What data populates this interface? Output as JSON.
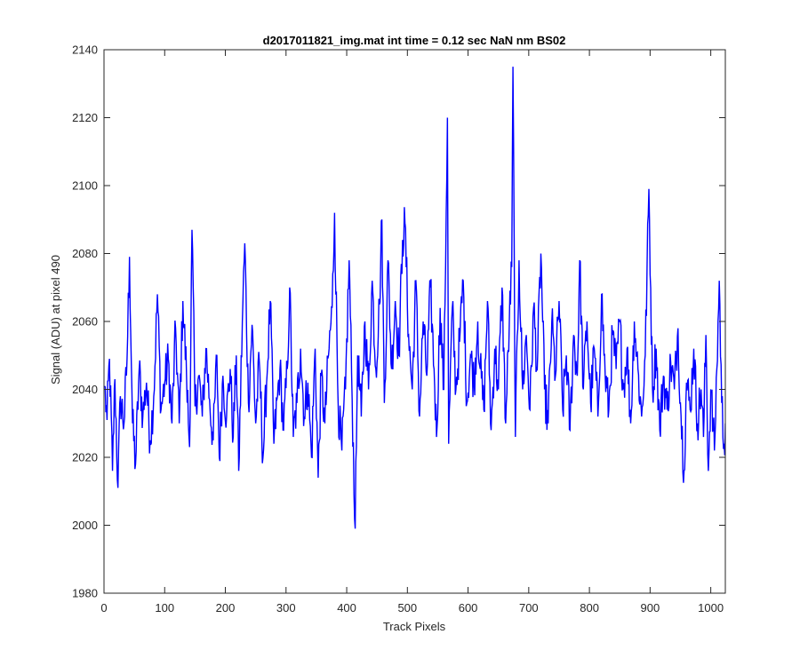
{
  "chart_data": {
    "type": "line",
    "title": "d2017011821_img.mat int time = 0.12 sec  NaN nm BS02",
    "xlabel": "Track Pixels",
    "ylabel": "Signal (ADU) at pixel 490",
    "xlim": [
      0,
      1024
    ],
    "ylim": [
      1980,
      2140
    ],
    "x_ticks": [
      0,
      100,
      200,
      300,
      400,
      500,
      600,
      700,
      800,
      900,
      1000
    ],
    "y_ticks": [
      1980,
      2000,
      2020,
      2040,
      2060,
      2080,
      2100,
      2120,
      2140
    ],
    "grid": false,
    "legend": "none",
    "series": [
      {
        "color": "#0000ff",
        "x_start": 1,
        "x_step": 1,
        "values_description_note_removed": null,
        "knots": [
          [
            1,
            2041
          ],
          [
            5,
            2031
          ],
          [
            9,
            2049
          ],
          [
            14,
            2016
          ],
          [
            18,
            2043
          ],
          [
            23,
            2011
          ],
          [
            27,
            2038
          ],
          [
            33,
            2030
          ],
          [
            38,
            2049
          ],
          [
            42,
            2079
          ],
          [
            47,
            2030
          ],
          [
            52,
            2018
          ],
          [
            58,
            2046
          ],
          [
            64,
            2032
          ],
          [
            70,
            2042
          ],
          [
            76,
            2025
          ],
          [
            82,
            2038
          ],
          [
            88,
            2068
          ],
          [
            94,
            2034
          ],
          [
            100,
            2042
          ],
          [
            106,
            2049
          ],
          [
            112,
            2030
          ],
          [
            118,
            2058
          ],
          [
            124,
            2030
          ],
          [
            130,
            2066
          ],
          [
            136,
            2044
          ],
          [
            141,
            2023
          ],
          [
            145,
            2087
          ],
          [
            150,
            2035
          ],
          [
            156,
            2044
          ],
          [
            162,
            2032
          ],
          [
            168,
            2052
          ],
          [
            174,
            2037
          ],
          [
            180,
            2025
          ],
          [
            186,
            2050
          ],
          [
            190,
            2020
          ],
          [
            196,
            2044
          ],
          [
            202,
            2032
          ],
          [
            208,
            2046
          ],
          [
            213,
            2026
          ],
          [
            218,
            2050
          ],
          [
            222,
            2016
          ],
          [
            228,
            2060
          ],
          [
            232,
            2083
          ],
          [
            238,
            2036
          ],
          [
            244,
            2059
          ],
          [
            250,
            2030
          ],
          [
            256,
            2048
          ],
          [
            262,
            2020
          ],
          [
            268,
            2042
          ],
          [
            274,
            2066
          ],
          [
            280,
            2024
          ],
          [
            286,
            2038
          ],
          [
            290,
            2046
          ],
          [
            296,
            2028
          ],
          [
            302,
            2046
          ],
          [
            306,
            2070
          ],
          [
            312,
            2026
          ],
          [
            318,
            2036
          ],
          [
            324,
            2052
          ],
          [
            330,
            2032
          ],
          [
            336,
            2042
          ],
          [
            342,
            2020
          ],
          [
            348,
            2052
          ],
          [
            353,
            2014
          ],
          [
            358,
            2044
          ],
          [
            364,
            2030
          ],
          [
            370,
            2050
          ],
          [
            376,
            2064
          ],
          [
            380,
            2092
          ],
          [
            386,
            2035
          ],
          [
            392,
            2022
          ],
          [
            398,
            2040
          ],
          [
            404,
            2078
          ],
          [
            408,
            2045
          ],
          [
            414,
            1999
          ],
          [
            418,
            2050
          ],
          [
            424,
            2032
          ],
          [
            430,
            2060
          ],
          [
            436,
            2040
          ],
          [
            442,
            2072
          ],
          [
            448,
            2046
          ],
          [
            454,
            2065
          ],
          [
            458,
            2090
          ],
          [
            462,
            2036
          ],
          [
            468,
            2078
          ],
          [
            474,
            2046
          ],
          [
            480,
            2066
          ],
          [
            486,
            2050
          ],
          [
            492,
            2084
          ],
          [
            496,
            2089
          ],
          [
            502,
            2056
          ],
          [
            508,
            2040
          ],
          [
            514,
            2072
          ],
          [
            520,
            2032
          ],
          [
            526,
            2060
          ],
          [
            532,
            2044
          ],
          [
            538,
            2070
          ],
          [
            544,
            2046
          ],
          [
            548,
            2026
          ],
          [
            554,
            2064
          ],
          [
            560,
            2040
          ],
          [
            566,
            2120
          ],
          [
            568,
            2024
          ],
          [
            574,
            2064
          ],
          [
            580,
            2040
          ],
          [
            586,
            2054
          ],
          [
            592,
            2072
          ],
          [
            598,
            2036
          ],
          [
            604,
            2050
          ],
          [
            610,
            2042
          ],
          [
            616,
            2060
          ],
          [
            620,
            2046
          ],
          [
            626,
            2034
          ],
          [
            632,
            2066
          ],
          [
            638,
            2028
          ],
          [
            644,
            2052
          ],
          [
            650,
            2040
          ],
          [
            656,
            2070
          ],
          [
            662,
            2030
          ],
          [
            668,
            2060
          ],
          [
            672,
            2076
          ],
          [
            674,
            2135
          ],
          [
            678,
            2026
          ],
          [
            684,
            2078
          ],
          [
            690,
            2040
          ],
          [
            696,
            2056
          ],
          [
            702,
            2034
          ],
          [
            708,
            2064
          ],
          [
            714,
            2046
          ],
          [
            720,
            2080
          ],
          [
            726,
            2040
          ],
          [
            732,
            2030
          ],
          [
            738,
            2060
          ],
          [
            744,
            2044
          ],
          [
            750,
            2066
          ],
          [
            756,
            2034
          ],
          [
            762,
            2050
          ],
          [
            768,
            2028
          ],
          [
            774,
            2056
          ],
          [
            780,
            2044
          ],
          [
            784,
            2078
          ],
          [
            790,
            2040
          ],
          [
            796,
            2060
          ],
          [
            802,
            2036
          ],
          [
            808,
            2052
          ],
          [
            814,
            2032
          ],
          [
            820,
            2068
          ],
          [
            826,
            2044
          ],
          [
            832,
            2034
          ],
          [
            838,
            2056
          ],
          [
            844,
            2046
          ],
          [
            850,
            2060
          ],
          [
            856,
            2040
          ],
          [
            862,
            2052
          ],
          [
            868,
            2030
          ],
          [
            874,
            2060
          ],
          [
            880,
            2046
          ],
          [
            886,
            2032
          ],
          [
            892,
            2050
          ],
          [
            898,
            2099
          ],
          [
            904,
            2040
          ],
          [
            910,
            2052
          ],
          [
            916,
            2028
          ],
          [
            922,
            2044
          ],
          [
            928,
            2034
          ],
          [
            934,
            2048
          ],
          [
            940,
            2040
          ],
          [
            946,
            2058
          ],
          [
            950,
            2036
          ],
          [
            956,
            2016
          ],
          [
            960,
            2042
          ],
          [
            966,
            2034
          ],
          [
            972,
            2052
          ],
          [
            978,
            2030
          ],
          [
            984,
            2040
          ],
          [
            988,
            2026
          ],
          [
            992,
            2056
          ],
          [
            996,
            2016
          ],
          [
            1000,
            2040
          ],
          [
            1006,
            2022
          ],
          [
            1010,
            2046
          ],
          [
            1014,
            2072
          ],
          [
            1018,
            2036
          ],
          [
            1022,
            2024
          ],
          [
            1024,
            2030
          ]
        ]
      }
    ]
  }
}
